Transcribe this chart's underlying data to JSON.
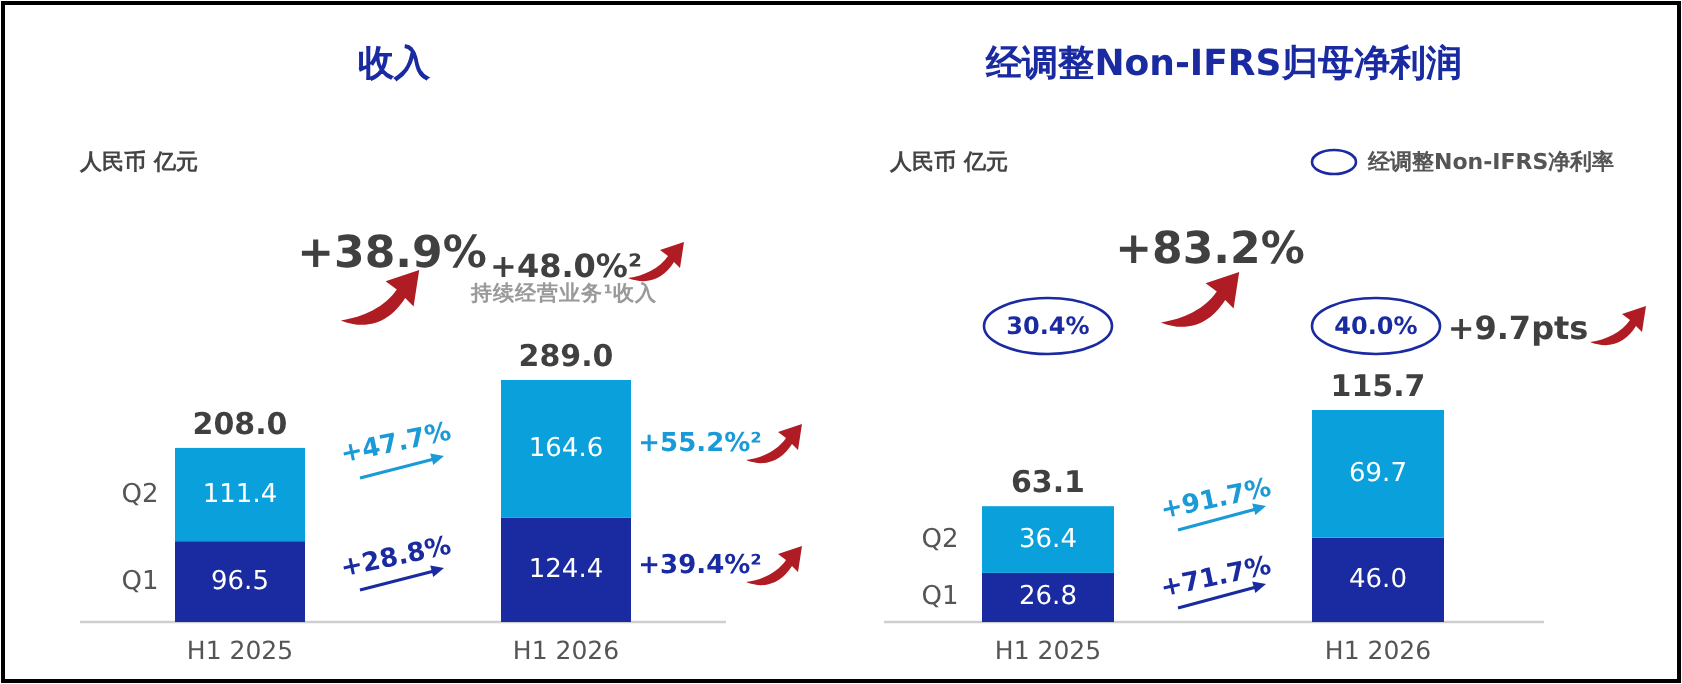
{
  "chart_data": [
    {
      "type": "bar",
      "stacked": true,
      "title": "收入",
      "categories": [
        "H1 2025",
        "H1 2026"
      ],
      "series": [
        {
          "name": "Q1",
          "color": "#1a2aa0",
          "values": [
            96.5,
            124.4
          ],
          "value_labels": [
            "96.5",
            "124.4"
          ]
        },
        {
          "name": "Q2",
          "color": "#0aa0dc",
          "values": [
            111.4,
            164.6
          ],
          "value_labels": [
            "111.4",
            "164.6"
          ]
        }
      ],
      "totals": [
        "208.0",
        "289.0"
      ],
      "annotations": [
        "+38.9%",
        "+48.0%²",
        "持续经营业务¹收入",
        "+47.7%",
        "+28.8%",
        "+55.2%²",
        "+39.4%²",
        "人民币 亿元"
      ]
    },
    {
      "type": "bar",
      "stacked": true,
      "title": "经调整Non-IFRS归母净利润",
      "categories": [
        "H1 2025",
        "H1 2026"
      ],
      "series": [
        {
          "name": "Q1",
          "color": "#1a2aa0",
          "values": [
            26.8,
            46.0
          ],
          "value_labels": [
            "26.8",
            "46.0"
          ]
        },
        {
          "name": "Q2",
          "color": "#0aa0dc",
          "values": [
            36.4,
            69.7
          ],
          "value_labels": [
            "36.4",
            "69.7"
          ]
        }
      ],
      "totals": [
        "63.1",
        "115.7"
      ],
      "legend_title": "经调整Non-IFRS净利率",
      "annotations": [
        "+83.2%",
        "30.4%",
        "40.0%",
        "+9.7pts",
        "+91.7%",
        "+71.7%",
        "人民币 亿元"
      ]
    }
  ]
}
